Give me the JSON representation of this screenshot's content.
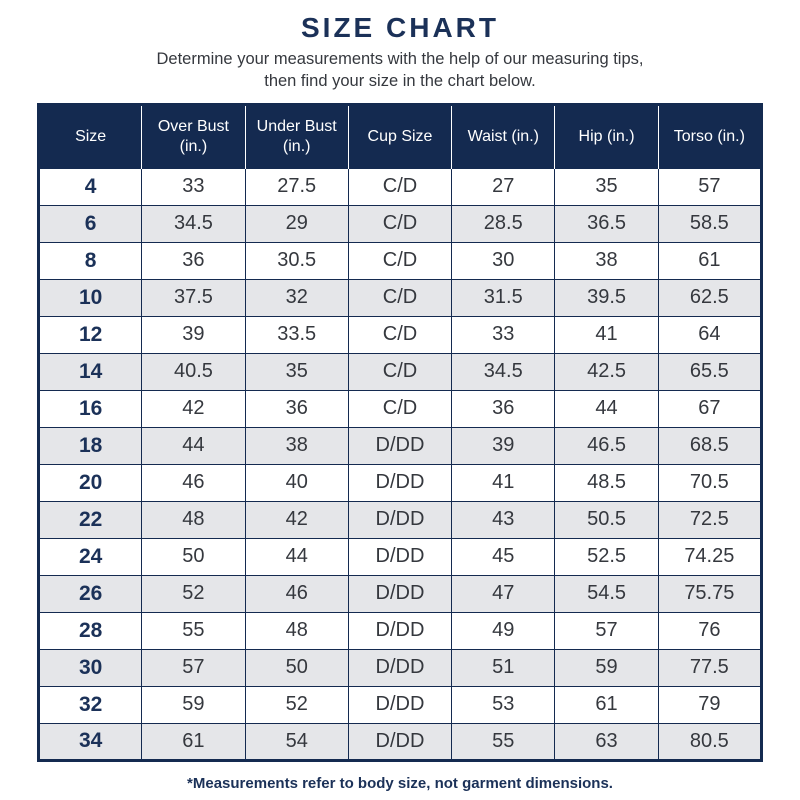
{
  "page": {
    "title": "SIZE CHART",
    "subtitle_line1": "Determine your measurements with the help of our measuring tips,",
    "subtitle_line2": "then find your size in the chart below.",
    "footnote": "*Measurements refer to body size, not garment dimensions."
  },
  "colors": {
    "header_navy": "#142a50",
    "title_navy": "#1b3158",
    "body_text": "#35383e",
    "alt_row_gray": "#e5e6e9"
  },
  "chart_data": {
    "type": "table",
    "title": "SIZE CHART",
    "columns": [
      "Size",
      "Over Bust (in.)",
      "Under Bust (in.)",
      "Cup Size",
      "Waist (in.)",
      "Hip (in.)",
      "Torso (in.)"
    ],
    "rows": [
      [
        "4",
        "33",
        "27.5",
        "C/D",
        "27",
        "35",
        "57"
      ],
      [
        "6",
        "34.5",
        "29",
        "C/D",
        "28.5",
        "36.5",
        "58.5"
      ],
      [
        "8",
        "36",
        "30.5",
        "C/D",
        "30",
        "38",
        "61"
      ],
      [
        "10",
        "37.5",
        "32",
        "C/D",
        "31.5",
        "39.5",
        "62.5"
      ],
      [
        "12",
        "39",
        "33.5",
        "C/D",
        "33",
        "41",
        "64"
      ],
      [
        "14",
        "40.5",
        "35",
        "C/D",
        "34.5",
        "42.5",
        "65.5"
      ],
      [
        "16",
        "42",
        "36",
        "C/D",
        "36",
        "44",
        "67"
      ],
      [
        "18",
        "44",
        "38",
        "D/DD",
        "39",
        "46.5",
        "68.5"
      ],
      [
        "20",
        "46",
        "40",
        "D/DD",
        "41",
        "48.5",
        "70.5"
      ],
      [
        "22",
        "48",
        "42",
        "D/DD",
        "43",
        "50.5",
        "72.5"
      ],
      [
        "24",
        "50",
        "44",
        "D/DD",
        "45",
        "52.5",
        "74.25"
      ],
      [
        "26",
        "52",
        "46",
        "D/DD",
        "47",
        "54.5",
        "75.75"
      ],
      [
        "28",
        "55",
        "48",
        "D/DD",
        "49",
        "57",
        "76"
      ],
      [
        "30",
        "57",
        "50",
        "D/DD",
        "51",
        "59",
        "77.5"
      ],
      [
        "32",
        "59",
        "52",
        "D/DD",
        "53",
        "61",
        "79"
      ],
      [
        "34",
        "61",
        "54",
        "D/DD",
        "55",
        "63",
        "80.5"
      ]
    ]
  }
}
